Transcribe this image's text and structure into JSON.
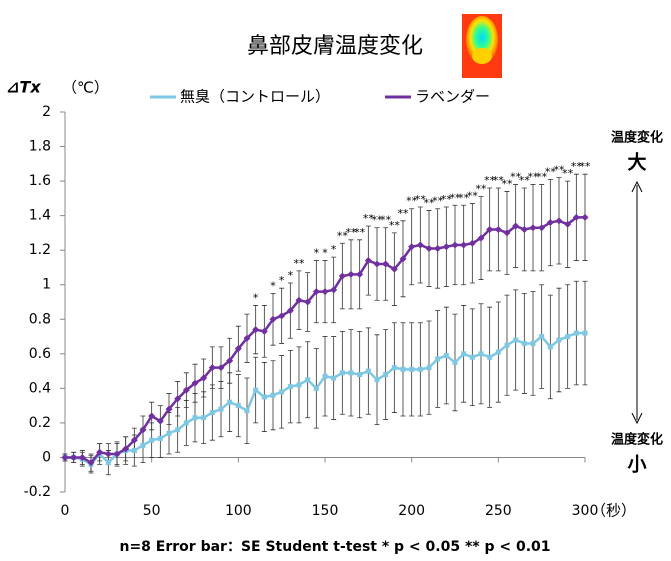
{
  "chart_data": {
    "type": "line",
    "title": "鼻部皮膚温度変化",
    "y_label": "⊿Tx",
    "y_unit": "（℃）",
    "x_unit": "（秒）",
    "scale_top": [
      "温度変化",
      "大"
    ],
    "scale_bottom": [
      "温度変化",
      "小"
    ],
    "footnote": "n=8  Error bar：SE    Student t-test * p < 0.05  ** p < 0.01",
    "x": [
      0,
      5,
      10,
      15,
      20,
      25,
      30,
      35,
      40,
      45,
      50,
      55,
      60,
      65,
      70,
      75,
      80,
      85,
      90,
      95,
      100,
      105,
      110,
      115,
      120,
      125,
      130,
      135,
      140,
      145,
      150,
      155,
      160,
      165,
      170,
      175,
      180,
      185,
      190,
      195,
      200,
      205,
      210,
      215,
      220,
      225,
      230,
      235,
      240,
      245,
      250,
      255,
      260,
      265,
      270,
      275,
      280,
      285,
      290,
      295,
      300
    ],
    "series": [
      {
        "name": "無臭（コントロール）",
        "color": "#7ec8e3",
        "marker": "square",
        "values": [
          0,
          0,
          -0.01,
          -0.04,
          0.02,
          -0.03,
          0.02,
          0.04,
          0.04,
          0.07,
          0.1,
          0.11,
          0.14,
          0.16,
          0.2,
          0.23,
          0.23,
          0.26,
          0.28,
          0.32,
          0.3,
          0.27,
          0.39,
          0.35,
          0.36,
          0.38,
          0.41,
          0.42,
          0.45,
          0.4,
          0.47,
          0.46,
          0.49,
          0.49,
          0.48,
          0.5,
          0.45,
          0.48,
          0.52,
          0.51,
          0.51,
          0.51,
          0.52,
          0.57,
          0.59,
          0.55,
          0.6,
          0.58,
          0.6,
          0.58,
          0.61,
          0.65,
          0.68,
          0.66,
          0.66,
          0.7,
          0.64,
          0.68,
          0.7,
          0.72,
          0.72
        ],
        "errors": [
          0.02,
          0.03,
          0.04,
          0.05,
          0.06,
          0.07,
          0.07,
          0.08,
          0.09,
          0.1,
          0.1,
          0.11,
          0.12,
          0.13,
          0.13,
          0.14,
          0.15,
          0.16,
          0.16,
          0.17,
          0.18,
          0.19,
          0.19,
          0.2,
          0.2,
          0.21,
          0.21,
          0.22,
          0.22,
          0.23,
          0.23,
          0.24,
          0.24,
          0.25,
          0.25,
          0.25,
          0.26,
          0.26,
          0.26,
          0.27,
          0.27,
          0.27,
          0.27,
          0.28,
          0.28,
          0.28,
          0.28,
          0.28,
          0.29,
          0.29,
          0.29,
          0.29,
          0.29,
          0.29,
          0.3,
          0.3,
          0.3,
          0.3,
          0.3,
          0.3,
          0.3
        ]
      },
      {
        "name": "ラベンダー",
        "color": "#7030a0",
        "marker": "diamond",
        "values": [
          0,
          0,
          0,
          -0.03,
          0.03,
          0.02,
          0.02,
          0.05,
          0.1,
          0.16,
          0.24,
          0.21,
          0.28,
          0.34,
          0.39,
          0.43,
          0.46,
          0.52,
          0.52,
          0.56,
          0.63,
          0.69,
          0.74,
          0.73,
          0.8,
          0.82,
          0.85,
          0.91,
          0.9,
          0.96,
          0.96,
          0.97,
          1.05,
          1.06,
          1.06,
          1.14,
          1.12,
          1.12,
          1.09,
          1.15,
          1.22,
          1.23,
          1.21,
          1.21,
          1.22,
          1.23,
          1.23,
          1.24,
          1.27,
          1.32,
          1.32,
          1.3,
          1.34,
          1.32,
          1.33,
          1.33,
          1.36,
          1.37,
          1.35,
          1.39,
          1.39
        ],
        "errors": [
          0.02,
          0.03,
          0.04,
          0.05,
          0.05,
          0.06,
          0.06,
          0.07,
          0.07,
          0.08,
          0.08,
          0.09,
          0.09,
          0.1,
          0.1,
          0.11,
          0.11,
          0.12,
          0.12,
          0.13,
          0.13,
          0.14,
          0.14,
          0.15,
          0.15,
          0.16,
          0.16,
          0.17,
          0.17,
          0.18,
          0.18,
          0.19,
          0.19,
          0.2,
          0.2,
          0.2,
          0.21,
          0.21,
          0.21,
          0.22,
          0.22,
          0.22,
          0.22,
          0.23,
          0.23,
          0.23,
          0.23,
          0.23,
          0.24,
          0.24,
          0.24,
          0.24,
          0.24,
          0.24,
          0.25,
          0.25,
          0.25,
          0.25,
          0.25,
          0.25,
          0.25
        ],
        "significance": [
          null,
          null,
          null,
          null,
          null,
          null,
          null,
          null,
          null,
          null,
          null,
          null,
          null,
          null,
          null,
          null,
          null,
          null,
          null,
          null,
          null,
          null,
          "*",
          null,
          "*",
          "*",
          "*",
          "**",
          null,
          "*",
          "*",
          "*",
          "**",
          "**",
          "**",
          "**",
          "**",
          "**",
          "**",
          "**",
          "**",
          "**",
          "**",
          "**",
          "**",
          "**",
          "**",
          "**",
          "**",
          "**",
          "**",
          "**",
          "**",
          "**",
          "**",
          "**",
          "**",
          "**",
          "**",
          "**",
          "**"
        ]
      }
    ],
    "xlim": [
      0,
      300
    ],
    "xticks": [
      0,
      50,
      100,
      150,
      200,
      250,
      300
    ],
    "ylim": [
      -0.2,
      2
    ],
    "yticks": [
      -0.2,
      0,
      0.2,
      0.4,
      0.6,
      0.8,
      1,
      1.2,
      1.4,
      1.6,
      1.8,
      2
    ],
    "grid": false
  }
}
